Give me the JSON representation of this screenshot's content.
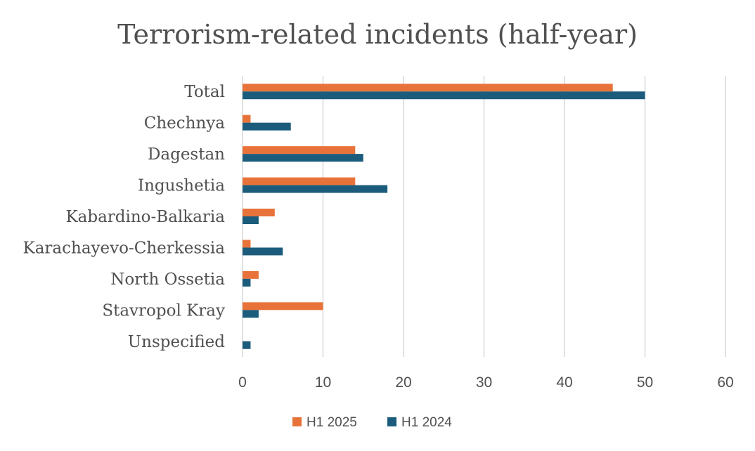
{
  "chart_data": {
    "type": "bar",
    "orientation": "horizontal",
    "title": "Terrorism-related incidents (half-year)",
    "categories": [
      "Total",
      "Chechnya",
      "Dagestan",
      "Ingushetia",
      "Kabardino-Balkaria",
      "Karachayevo-Cherkessia",
      "North Ossetia",
      "Stavropol Kray",
      "Unspecified"
    ],
    "series": [
      {
        "name": "H1 2025",
        "color": "#E8733A",
        "values": [
          46,
          1,
          14,
          14,
          4,
          1,
          2,
          10,
          0
        ]
      },
      {
        "name": "H1 2024",
        "color": "#1B5C7C",
        "values": [
          50,
          6,
          15,
          18,
          2,
          5,
          1,
          2,
          1
        ]
      }
    ],
    "xlim": [
      0,
      60
    ],
    "xticks": [
      0,
      10,
      20,
      30,
      40,
      50,
      60
    ],
    "grid": true,
    "legend": "bottom"
  }
}
